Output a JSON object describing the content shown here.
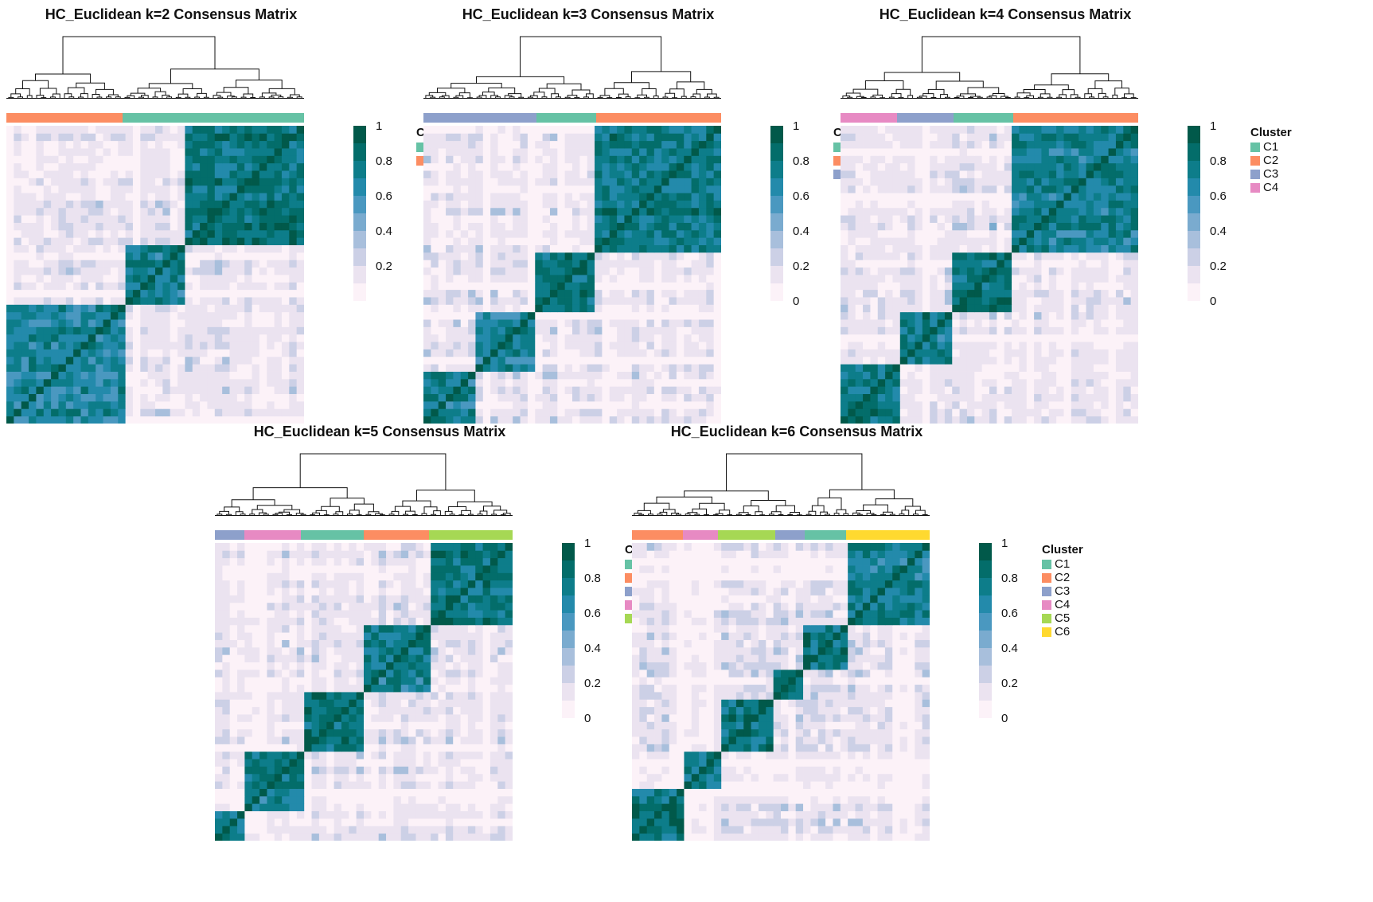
{
  "colors": {
    "C1": "#66c2a5",
    "C2": "#fc8d62",
    "C3": "#8da0cb",
    "C4": "#e78ac3",
    "C5": "#a6d854",
    "C6": "#ffd92f",
    "scale": [
      "#fcf2f8",
      "#ebe3f0",
      "#ccd0e6",
      "#a8bfdc",
      "#7aabcf",
      "#4a98c0",
      "#238aab",
      "#0d7d8a",
      "#036d6a",
      "#01594a"
    ]
  },
  "chart_data": [
    {
      "type": "heatmap",
      "title": "HC_Euclidean k=2 Consensus Matrix",
      "legend_title": "Cluster",
      "legend": [
        "C1",
        "C2"
      ],
      "colorbar_ticks": [
        "1",
        "0.8",
        "0.6",
        "0.4",
        "0.2"
      ],
      "ylim": [
        0,
        1
      ],
      "annotation": [
        {
          "cluster": "C2",
          "fraction": 0.39
        },
        {
          "cluster": "C1",
          "fraction": 0.61
        }
      ],
      "blocks": [
        {
          "start": 0,
          "end": 0.39,
          "value": 0.8
        },
        {
          "start": 0.39,
          "end": 0.61,
          "value": 0.85
        },
        {
          "start": 0.61,
          "end": 1.0,
          "value": 0.92
        }
      ]
    },
    {
      "type": "heatmap",
      "title": "HC_Euclidean k=3 Consensus Matrix",
      "legend_title": "Cluster",
      "legend": [
        "C1",
        "C2",
        "C3"
      ],
      "colorbar_ticks": [
        "1",
        "0.8",
        "0.6",
        "0.4",
        "0.2",
        "0"
      ],
      "ylim": [
        0,
        1
      ],
      "annotation": [
        {
          "cluster": "C3",
          "fraction": 0.38
        },
        {
          "cluster": "C1",
          "fraction": 0.2
        },
        {
          "cluster": "C2",
          "fraction": 0.42
        }
      ],
      "blocks": [
        {
          "start": 0,
          "end": 0.18,
          "value": 0.85
        },
        {
          "start": 0.18,
          "end": 0.38,
          "value": 0.8
        },
        {
          "start": 0.38,
          "end": 0.58,
          "value": 0.9
        },
        {
          "start": 0.58,
          "end": 1.0,
          "value": 0.88
        }
      ]
    },
    {
      "type": "heatmap",
      "title": "HC_Euclidean k=4 Consensus Matrix",
      "legend_title": "Cluster",
      "legend": [
        "C1",
        "C2",
        "C3",
        "C4"
      ],
      "colorbar_ticks": [
        "1",
        "0.8",
        "0.6",
        "0.4",
        "0.2",
        "0"
      ],
      "ylim": [
        0,
        1
      ],
      "annotation": [
        {
          "cluster": "C4",
          "fraction": 0.19
        },
        {
          "cluster": "C3",
          "fraction": 0.19
        },
        {
          "cluster": "C1",
          "fraction": 0.2
        },
        {
          "cluster": "C2",
          "fraction": 0.42
        }
      ],
      "blocks": [
        {
          "start": 0,
          "end": 0.19,
          "value": 0.9
        },
        {
          "start": 0.19,
          "end": 0.38,
          "value": 0.88
        },
        {
          "start": 0.38,
          "end": 0.58,
          "value": 0.92
        },
        {
          "start": 0.58,
          "end": 1.0,
          "value": 0.85
        }
      ]
    },
    {
      "type": "heatmap",
      "title": "HC_Euclidean k=5 Consensus Matrix",
      "legend_title": "Cluster",
      "legend": [
        "C1",
        "C2",
        "C3",
        "C4",
        "C5"
      ],
      "colorbar_ticks": [
        "1",
        "0.8",
        "0.6",
        "0.4",
        "0.2",
        "0"
      ],
      "ylim": [
        0,
        1
      ],
      "annotation": [
        {
          "cluster": "C3",
          "fraction": 0.1
        },
        {
          "cluster": "C4",
          "fraction": 0.19
        },
        {
          "cluster": "C1",
          "fraction": 0.21
        },
        {
          "cluster": "C2",
          "fraction": 0.22
        },
        {
          "cluster": "C5",
          "fraction": 0.28
        }
      ],
      "blocks": [
        {
          "start": 0,
          "end": 0.1,
          "value": 0.85
        },
        {
          "start": 0.1,
          "end": 0.29,
          "value": 0.88
        },
        {
          "start": 0.29,
          "end": 0.5,
          "value": 0.92
        },
        {
          "start": 0.5,
          "end": 0.72,
          "value": 0.85
        },
        {
          "start": 0.72,
          "end": 1.0,
          "value": 0.9
        }
      ]
    },
    {
      "type": "heatmap",
      "title": "HC_Euclidean k=6 Consensus Matrix",
      "legend_title": "Cluster",
      "legend": [
        "C1",
        "C2",
        "C3",
        "C4",
        "C5",
        "C6"
      ],
      "colorbar_ticks": [
        "1",
        "0.8",
        "0.6",
        "0.4",
        "0.2",
        "0"
      ],
      "ylim": [
        0,
        1
      ],
      "annotation": [
        {
          "cluster": "C2",
          "fraction": 0.17
        },
        {
          "cluster": "C4",
          "fraction": 0.12
        },
        {
          "cluster": "C5",
          "fraction": 0.19
        },
        {
          "cluster": "C3",
          "fraction": 0.1
        },
        {
          "cluster": "C1",
          "fraction": 0.14
        },
        {
          "cluster": "C6",
          "fraction": 0.28
        }
      ],
      "blocks": [
        {
          "start": 0,
          "end": 0.17,
          "value": 0.92
        },
        {
          "start": 0.17,
          "end": 0.29,
          "value": 0.9
        },
        {
          "start": 0.29,
          "end": 0.48,
          "value": 0.9
        },
        {
          "start": 0.48,
          "end": 0.58,
          "value": 0.92
        },
        {
          "start": 0.58,
          "end": 0.72,
          "value": 0.88
        },
        {
          "start": 0.72,
          "end": 1.0,
          "value": 0.85
        }
      ]
    }
  ]
}
